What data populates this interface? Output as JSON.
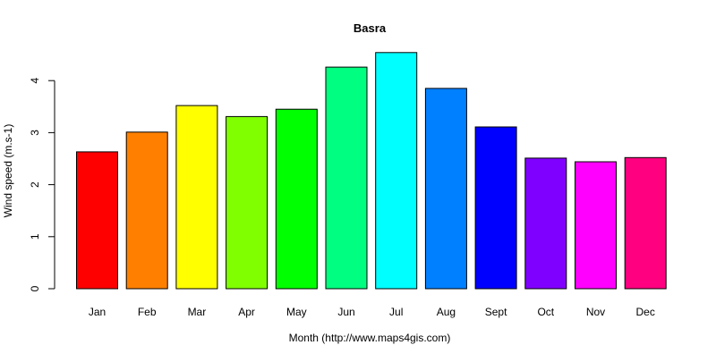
{
  "chart_data": {
    "type": "bar",
    "title": "Basra",
    "xlabel": "Month (http://www.maps4gis.com)",
    "ylabel": "Wind speed (m.s-1)",
    "categories": [
      "Jan",
      "Feb",
      "Mar",
      "Apr",
      "May",
      "Jun",
      "Jul",
      "Aug",
      "Sept",
      "Oct",
      "Nov",
      "Dec"
    ],
    "values": [
      2.63,
      3.01,
      3.52,
      3.31,
      3.45,
      4.26,
      4.54,
      3.85,
      3.11,
      2.51,
      2.44,
      2.52
    ],
    "colors": [
      "#FF0000",
      "#FF8000",
      "#FFFF00",
      "#80FF00",
      "#00FF00",
      "#00FF80",
      "#00FFFF",
      "#0080FF",
      "#0000FF",
      "#8000FF",
      "#FF00FF",
      "#FF0080"
    ],
    "yticks": [
      0,
      1,
      2,
      3,
      4
    ],
    "ylim": [
      0,
      4.7
    ],
    "grid": false,
    "legend": "none"
  }
}
